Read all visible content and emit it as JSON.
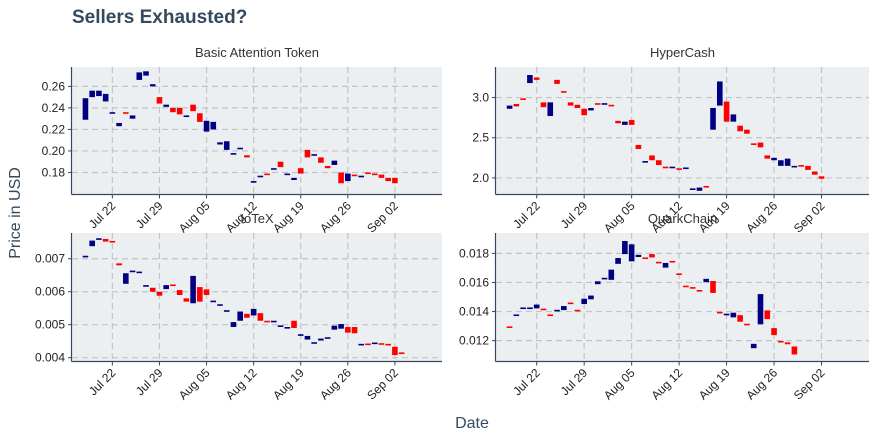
{
  "chart_title": "Sellers Exhausted?",
  "x_axis_label": "Date",
  "y_axis_label": "Price in USD",
  "colors": {
    "up": "#000080",
    "down": "#ff0000",
    "panel_bg": "#ebeff2",
    "grid": "#c4c4c4",
    "title": "#34495e"
  },
  "chart_data": [
    {
      "type": "candlestick",
      "title": "Basic Attention Token",
      "x_ticks": [
        "Jul 22",
        "Jul 29",
        "Aug 05",
        "Aug 12",
        "Aug 19",
        "Aug 26",
        "Sep 02"
      ],
      "y_ticks": [
        "0.26",
        "0.24",
        "0.22",
        "0.20",
        "0.18"
      ],
      "ylim": [
        0.16,
        0.278
      ],
      "x_start": "2019-07-18",
      "candles": [
        [
          0.229,
          0.249
        ],
        [
          0.25,
          0.256
        ],
        [
          0.251,
          0.256
        ],
        [
          0.246,
          0.253
        ],
        [
          0.235,
          0.236
        ],
        [
          0.223,
          0.226
        ],
        [
          0.236,
          0.235
        ],
        [
          0.23,
          0.233
        ],
        [
          0.266,
          0.273
        ],
        [
          0.27,
          0.274
        ],
        [
          0.26,
          0.262
        ],
        [
          0.25,
          0.244
        ],
        [
          0.241,
          0.243
        ],
        [
          0.24,
          0.236
        ],
        [
          0.24,
          0.234
        ],
        [
          0.232,
          0.233
        ],
        [
          0.243,
          0.237
        ],
        [
          0.235,
          0.227
        ],
        [
          0.218,
          0.228
        ],
        [
          0.22,
          0.227
        ],
        [
          0.206,
          0.208
        ],
        [
          0.201,
          0.209
        ],
        [
          0.198,
          0.198
        ],
        [
          0.202,
          0.203
        ],
        [
          0.196,
          0.194
        ],
        [
          0.171,
          0.172
        ],
        [
          0.176,
          0.177
        ],
        [
          0.179,
          0.178
        ],
        [
          0.183,
          0.184
        ],
        [
          0.19,
          0.185
        ],
        [
          0.178,
          0.179
        ],
        [
          0.173,
          0.175
        ],
        [
          0.184,
          0.179
        ],
        [
          0.201,
          0.194
        ],
        [
          0.196,
          0.197
        ],
        [
          0.194,
          0.189
        ],
        [
          0.186,
          0.184
        ],
        [
          0.187,
          0.191
        ],
        [
          0.18,
          0.17
        ],
        [
          0.172,
          0.179
        ],
        [
          0.178,
          0.177
        ],
        [
          0.176,
          0.177
        ],
        [
          0.18,
          0.179
        ],
        [
          0.179,
          0.178
        ],
        [
          0.178,
          0.175
        ],
        [
          0.175,
          0.172
        ],
        [
          0.175,
          0.17
        ]
      ]
    },
    {
      "type": "candlestick",
      "title": "HyperCash",
      "x_ticks": [
        "Jul 22",
        "Jul 29",
        "Aug 05",
        "Aug 12",
        "Aug 19",
        "Aug 26",
        "Sep 02"
      ],
      "y_ticks": [
        "3.0",
        "2.5",
        "2.0"
      ],
      "ylim": [
        1.8,
        3.38
      ],
      "x_start": "2019-07-18",
      "candles": [
        [
          2.86,
          2.9
        ],
        [
          2.92,
          2.89
        ],
        [
          2.99,
          2.98
        ],
        [
          3.18,
          3.28
        ],
        [
          3.25,
          3.22
        ],
        [
          2.94,
          2.88
        ],
        [
          2.77,
          2.94
        ],
        [
          3.22,
          3.17
        ],
        [
          3.08,
          3.07
        ],
        [
          2.94,
          2.9
        ],
        [
          2.91,
          2.87
        ],
        [
          2.86,
          2.78
        ],
        [
          2.84,
          2.87
        ],
        [
          2.93,
          2.92
        ],
        [
          2.91,
          2.93
        ],
        [
          2.91,
          2.89
        ],
        [
          2.71,
          2.68
        ],
        [
          2.66,
          2.7
        ],
        [
          2.72,
          2.66
        ],
        [
          2.41,
          2.36
        ],
        [
          2.19,
          2.21
        ],
        [
          2.28,
          2.22
        ],
        [
          2.22,
          2.16
        ],
        [
          2.14,
          2.13
        ],
        [
          2.12,
          2.14
        ],
        [
          2.12,
          2.1
        ],
        [
          2.13,
          2.13
        ],
        [
          1.86,
          1.87
        ],
        [
          1.84,
          1.88
        ],
        [
          1.9,
          1.89
        ],
        [
          2.6,
          2.87
        ],
        [
          2.9,
          3.2
        ],
        [
          2.95,
          2.7
        ],
        [
          2.7,
          2.79
        ],
        [
          2.65,
          2.58
        ],
        [
          2.6,
          2.55
        ],
        [
          2.43,
          2.42
        ],
        [
          2.44,
          2.38
        ],
        [
          2.28,
          2.24
        ],
        [
          2.22,
          2.25
        ],
        [
          2.15,
          2.22
        ],
        [
          2.15,
          2.24
        ],
        [
          2.14,
          2.15
        ],
        [
          2.16,
          2.14
        ],
        [
          2.15,
          2.1
        ],
        [
          2.08,
          2.04
        ],
        [
          2.02,
          1.99
        ]
      ]
    },
    {
      "type": "candlestick",
      "title": "IoTeX",
      "x_ticks": [
        "Jul 22",
        "Jul 29",
        "Aug 05",
        "Aug 12",
        "Aug 19",
        "Aug 26",
        "Sep 02"
      ],
      "y_ticks": [
        "0.007",
        "0.006",
        "0.005",
        "0.004"
      ],
      "ylim": [
        0.0039,
        0.00778
      ],
      "x_start": "2019-07-18",
      "candles": [
        [
          0.00707,
          0.00709
        ],
        [
          0.00738,
          0.00755
        ],
        [
          0.00758,
          0.00762
        ],
        [
          0.0076,
          0.00752
        ],
        [
          0.00754,
          0.00751
        ],
        [
          0.00686,
          0.0068
        ],
        [
          0.00624,
          0.00656
        ],
        [
          0.00662,
          0.00664
        ],
        [
          0.0066,
          0.00661
        ],
        [
          0.00616,
          0.0062
        ],
        [
          0.00612,
          0.006
        ],
        [
          0.006,
          0.00588
        ],
        [
          0.00608,
          0.0062
        ],
        [
          0.00622,
          0.00618
        ],
        [
          0.00605,
          0.0059
        ],
        [
          0.0058,
          0.0057
        ],
        [
          0.00565,
          0.00648
        ],
        [
          0.00614,
          0.0057
        ],
        [
          0.00607,
          0.0059
        ],
        [
          0.0057,
          0.00573
        ],
        [
          0.0056,
          0.00562
        ],
        [
          0.00542,
          0.00544
        ],
        [
          0.00493,
          0.00508
        ],
        [
          0.00512,
          0.0054
        ],
        [
          0.00533,
          0.00521
        ],
        [
          0.00528,
          0.00548
        ],
        [
          0.00535,
          0.00512
        ],
        [
          0.00512,
          0.0051
        ],
        [
          0.0051,
          0.00512
        ],
        [
          0.00498,
          0.00498
        ],
        [
          0.00493,
          0.00493
        ],
        [
          0.00512,
          0.0049
        ],
        [
          0.0047,
          0.00471
        ],
        [
          0.00455,
          0.00466
        ],
        [
          0.00447,
          0.00447
        ],
        [
          0.00452,
          0.00458
        ],
        [
          0.0046,
          0.00462
        ],
        [
          0.00485,
          0.00497
        ],
        [
          0.00488,
          0.00502
        ],
        [
          0.00493,
          0.00476
        ],
        [
          0.00493,
          0.00474
        ],
        [
          0.00438,
          0.00442
        ],
        [
          0.00443,
          0.0044
        ],
        [
          0.00444,
          0.00446
        ],
        [
          0.00444,
          0.0044
        ],
        [
          0.00442,
          0.00437
        ],
        [
          0.00433,
          0.00408
        ],
        [
          0.00416,
          0.00412
        ]
      ]
    },
    {
      "type": "candlestick",
      "title": "QuarkChain",
      "x_ticks": [
        "Jul 22",
        "Jul 29",
        "Aug 05",
        "Aug 12",
        "Aug 19",
        "Aug 26",
        "Sep 02"
      ],
      "y_ticks": [
        "0.018",
        "0.016",
        "0.014",
        "0.012"
      ],
      "ylim": [
        0.0106,
        0.0194
      ],
      "x_start": "2019-07-18",
      "candles": [
        [
          0.01298,
          0.0129
        ],
        [
          0.01376,
          0.0138
        ],
        [
          0.0142,
          0.01428
        ],
        [
          0.01428,
          0.01428
        ],
        [
          0.01422,
          0.01448
        ],
        [
          0.0142,
          0.01418
        ],
        [
          0.0138,
          0.01372
        ],
        [
          0.01408,
          0.01412
        ],
        [
          0.0141,
          0.01438
        ],
        [
          0.01462,
          0.0146
        ],
        [
          0.01412,
          0.01408
        ],
        [
          0.01452,
          0.01488
        ],
        [
          0.01484,
          0.0151
        ],
        [
          0.01588,
          0.01608
        ],
        [
          0.01628,
          0.01632
        ],
        [
          0.01618,
          0.01688
        ],
        [
          0.01728,
          0.01768
        ],
        [
          0.01795,
          0.01885
        ],
        [
          0.01745,
          0.01862
        ],
        [
          0.01775,
          0.0179
        ],
        [
          0.01772,
          0.01768
        ],
        [
          0.01795,
          0.01772
        ],
        [
          0.01742,
          0.01738
        ],
        [
          0.01702,
          0.01734
        ],
        [
          0.01748,
          0.01744
        ],
        [
          0.01662,
          0.01652
        ],
        [
          0.01578,
          0.01576
        ],
        [
          0.01568,
          0.01558
        ],
        [
          0.01548,
          0.01545
        ],
        [
          0.01602,
          0.01625
        ],
        [
          0.0161,
          0.01528
        ],
        [
          0.01398,
          0.01394
        ],
        [
          0.0138,
          0.01385
        ],
        [
          0.0136,
          0.01392
        ],
        [
          0.01375,
          0.0133
        ],
        [
          0.01316,
          0.0131
        ],
        [
          0.01148,
          0.01178
        ],
        [
          0.01312,
          0.0152
        ],
        [
          0.01408,
          0.01348
        ],
        [
          0.01286,
          0.01238
        ],
        [
          0.01198,
          0.01194
        ],
        [
          0.01188,
          0.01175
        ],
        [
          0.0116,
          0.01105
        ]
      ]
    }
  ]
}
